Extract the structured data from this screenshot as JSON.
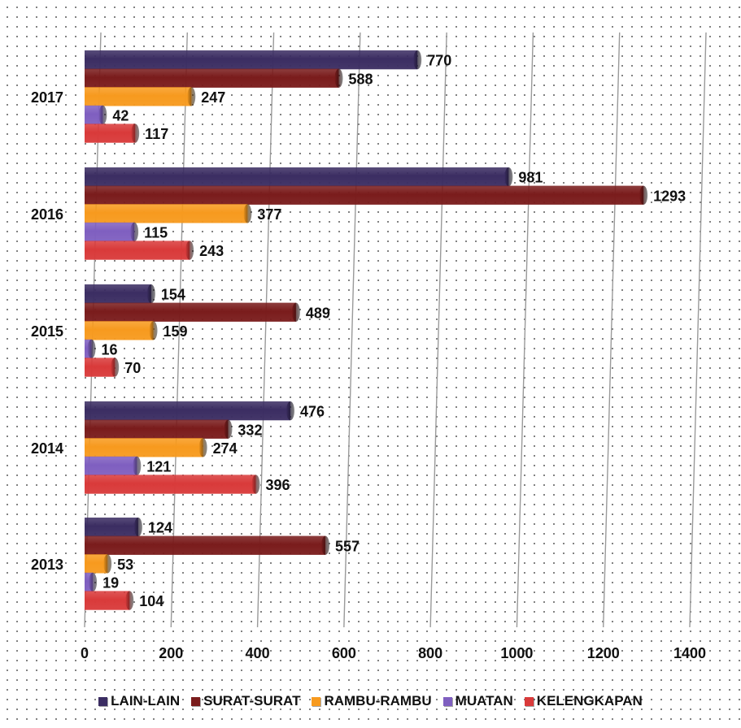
{
  "chart_data": {
    "type": "bar",
    "orientation": "horizontal",
    "categories": [
      "2017",
      "2016",
      "2015",
      "2014",
      "2013"
    ],
    "series": [
      {
        "name": "LAIN-LAIN",
        "color": "#3b2d62",
        "values": [
          770,
          981,
          154,
          476,
          124
        ]
      },
      {
        "name": "SURAT-SURAT",
        "color": "#7a1c1c",
        "values": [
          588,
          1293,
          489,
          332,
          557
        ]
      },
      {
        "name": "RAMBU-RAMBU",
        "color": "#f79a1e",
        "values": [
          247,
          377,
          159,
          274,
          53
        ]
      },
      {
        "name": "MUATAN",
        "color": "#7f5fc0",
        "values": [
          42,
          115,
          16,
          121,
          19
        ]
      },
      {
        "name": "KELENGKAPAN",
        "color": "#d93a3a",
        "values": [
          117,
          243,
          70,
          396,
          104
        ]
      }
    ],
    "xlim": [
      0,
      1400
    ],
    "x_ticks": [
      "0",
      "200",
      "400",
      "600",
      "800",
      "1000",
      "1200",
      "1400"
    ],
    "grid": true,
    "legend_position": "bottom",
    "data_labels": true
  }
}
